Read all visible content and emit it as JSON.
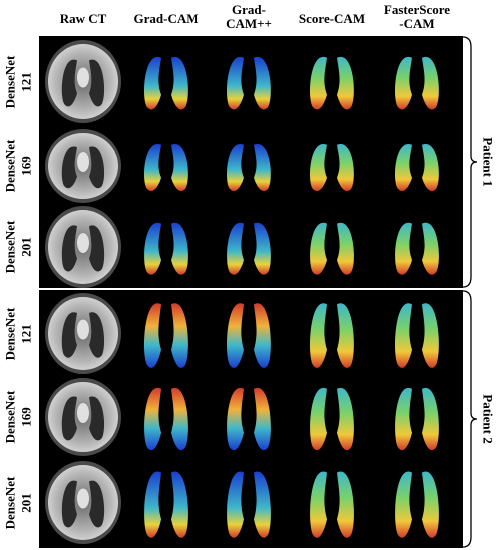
{
  "columns": [
    "Raw CT",
    "Grad-CAM",
    "Grad-\nCAM++",
    "Score-CAM",
    "FasterScore\n-CAM"
  ],
  "rows": [
    "DenseNet\n121",
    "DenseNet\n169",
    "DenseNet\n201",
    "DenseNet\n121",
    "DenseNet\n169",
    "DenseNet\n201"
  ],
  "groups": [
    "Patient 1",
    "Patient 2"
  ],
  "colors": {
    "panel_bg": "#000000",
    "ct_gray": "#9a9a9a",
    "cam_low": "#1a3fd0",
    "cam_mid": "#3fb7c9",
    "cam_high": "#d23a2a"
  }
}
